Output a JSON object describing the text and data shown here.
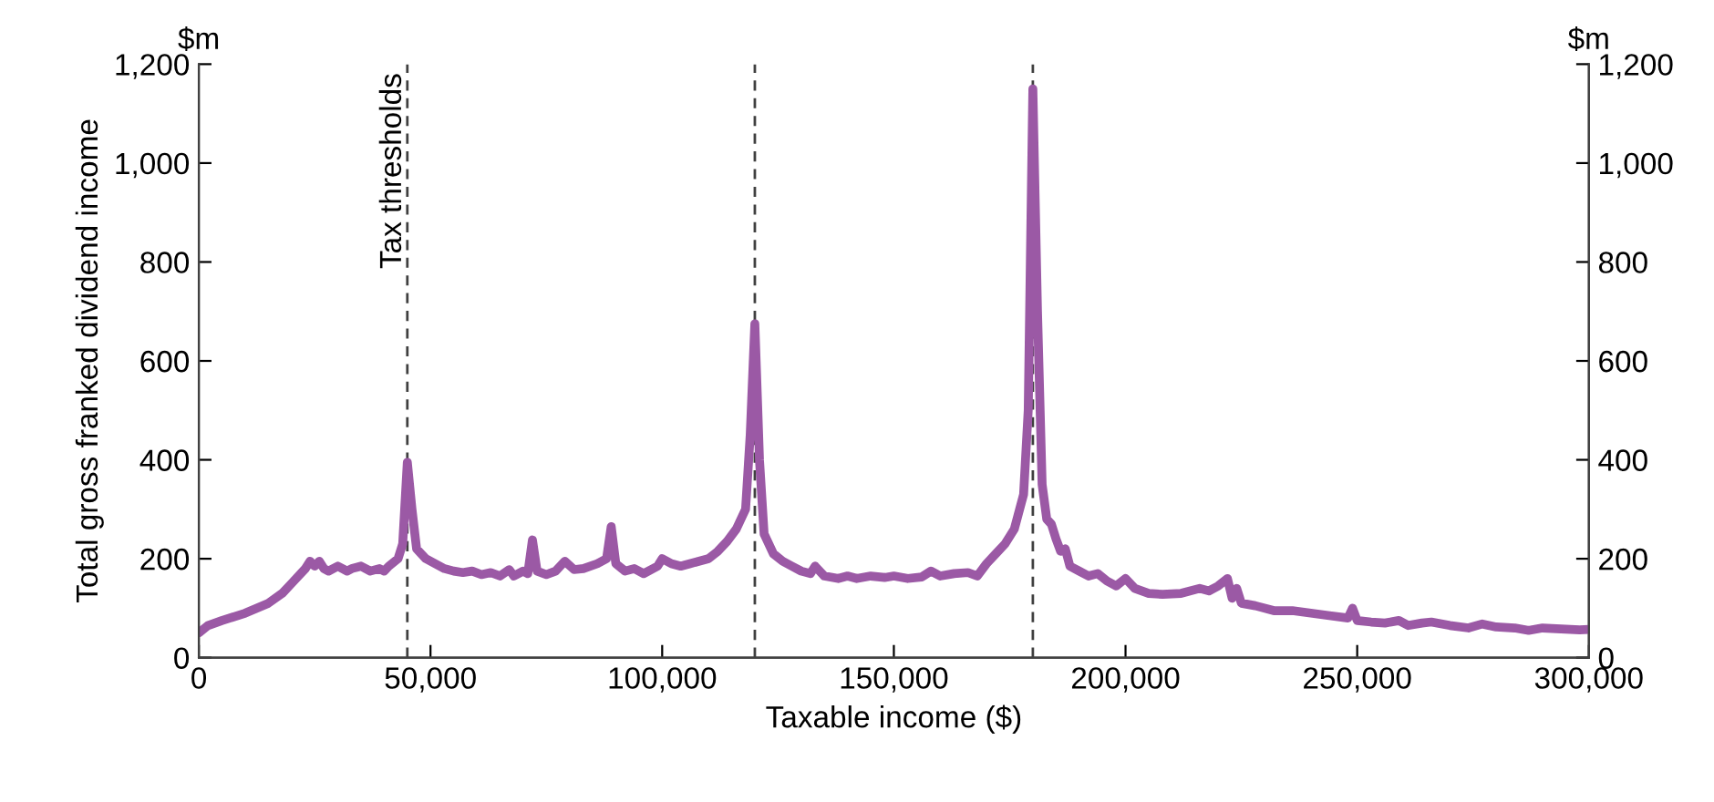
{
  "chart_data": {
    "type": "line",
    "xlabel": "Taxable income ($)",
    "ylabel": "Total gross franked dividend income",
    "y2label": "$m",
    "annotations": [
      "$m"
    ],
    "x": [
      0,
      2000,
      5000,
      10000,
      15000,
      18000,
      20000,
      23000,
      24000,
      25000,
      26000,
      27000,
      28000,
      30000,
      32000,
      33000,
      35000,
      37000,
      39000,
      40000,
      41000,
      43000,
      44000,
      45000,
      46000,
      47000,
      49000,
      51000,
      53000,
      55000,
      57000,
      59000,
      61000,
      63000,
      65000,
      67000,
      68000,
      70000,
      71000,
      72000,
      73000,
      75000,
      77000,
      79000,
      81000,
      83000,
      86000,
      88000,
      89000,
      90000,
      92000,
      94000,
      96000,
      98000,
      99000,
      100000,
      102000,
      104000,
      106000,
      108000,
      110000,
      112000,
      114000,
      116000,
      118000,
      119000,
      120000,
      121000,
      122000,
      124000,
      126000,
      128000,
      130000,
      132000,
      133000,
      135000,
      138000,
      140000,
      142000,
      145000,
      148000,
      150000,
      153000,
      156000,
      158000,
      160000,
      163000,
      166000,
      168000,
      170000,
      172000,
      174000,
      176000,
      178000,
      179000,
      180000,
      181000,
      182000,
      183000,
      184000,
      185000,
      186000,
      187000,
      188000,
      190000,
      192000,
      194000,
      196000,
      198000,
      200000,
      202000,
      205000,
      208000,
      212000,
      216000,
      218000,
      220000,
      222000,
      223000,
      224000,
      225000,
      228000,
      232000,
      236000,
      240000,
      244000,
      248000,
      249000,
      250000,
      253000,
      256000,
      259000,
      261000,
      264000,
      266000,
      270000,
      274000,
      277000,
      280000,
      284000,
      287000,
      290000,
      294000,
      298000,
      300000
    ],
    "series": [
      {
        "color": "#9b59a5",
        "values": [
          50,
          65,
          75,
          90,
          110,
          130,
          150,
          180,
          195,
          185,
          195,
          180,
          175,
          185,
          175,
          180,
          185,
          175,
          180,
          175,
          185,
          200,
          230,
          395,
          300,
          220,
          200,
          190,
          180,
          175,
          172,
          175,
          168,
          172,
          165,
          178,
          165,
          175,
          170,
          238,
          175,
          168,
          175,
          195,
          178,
          180,
          190,
          200,
          265,
          190,
          175,
          180,
          170,
          180,
          185,
          200,
          190,
          185,
          190,
          195,
          200,
          215,
          235,
          260,
          300,
          450,
          675,
          400,
          250,
          210,
          195,
          185,
          175,
          170,
          185,
          165,
          160,
          165,
          160,
          165,
          162,
          165,
          160,
          163,
          175,
          165,
          170,
          172,
          165,
          190,
          210,
          230,
          260,
          330,
          500,
          1150,
          700,
          350,
          280,
          270,
          240,
          215,
          220,
          185,
          175,
          165,
          170,
          155,
          145,
          160,
          140,
          130,
          128,
          130,
          140,
          135,
          145,
          160,
          120,
          140,
          110,
          105,
          95,
          95,
          90,
          85,
          80,
          100,
          75,
          72,
          70,
          75,
          65,
          70,
          72,
          65,
          60,
          68,
          62,
          60,
          55,
          60,
          58,
          56,
          57
        ]
      }
    ],
    "xlim": [
      0,
      300000
    ],
    "xticks": [
      0,
      {
        "value": 50000,
        "label": "50,000"
      },
      {
        "value": 100000,
        "label": "100,000"
      },
      {
        "value": 150000,
        "label": "150,000"
      },
      {
        "value": 200000,
        "label": "200,000"
      },
      {
        "value": 250000,
        "label": "250,000"
      },
      {
        "value": 300000,
        "label": "300,000"
      }
    ],
    "ylim": [
      0,
      1200
    ],
    "yticks": [
      0,
      200,
      400,
      600,
      800,
      {
        "value": 1000,
        "label": "1,000"
      },
      {
        "value": 1200,
        "label": "1,200"
      }
    ],
    "y2lim": [
      0,
      1200
    ],
    "y2ticks": [
      0,
      200,
      400,
      600,
      800,
      {
        "value": 1000,
        "label": "1,000"
      },
      {
        "value": 1200,
        "label": "1,200"
      }
    ],
    "ref_lines": [
      {
        "axis": "x",
        "value": 45000,
        "label": "Tax thresholds",
        "color": "#404040",
        "line_style": "dashed"
      },
      {
        "axis": "x",
        "value": 120000,
        "color": "#404040",
        "line_style": "dashed"
      },
      {
        "axis": "x",
        "value": 180000,
        "color": "#404040",
        "line_style": "dashed"
      }
    ],
    "grid": false,
    "legend": false
  }
}
